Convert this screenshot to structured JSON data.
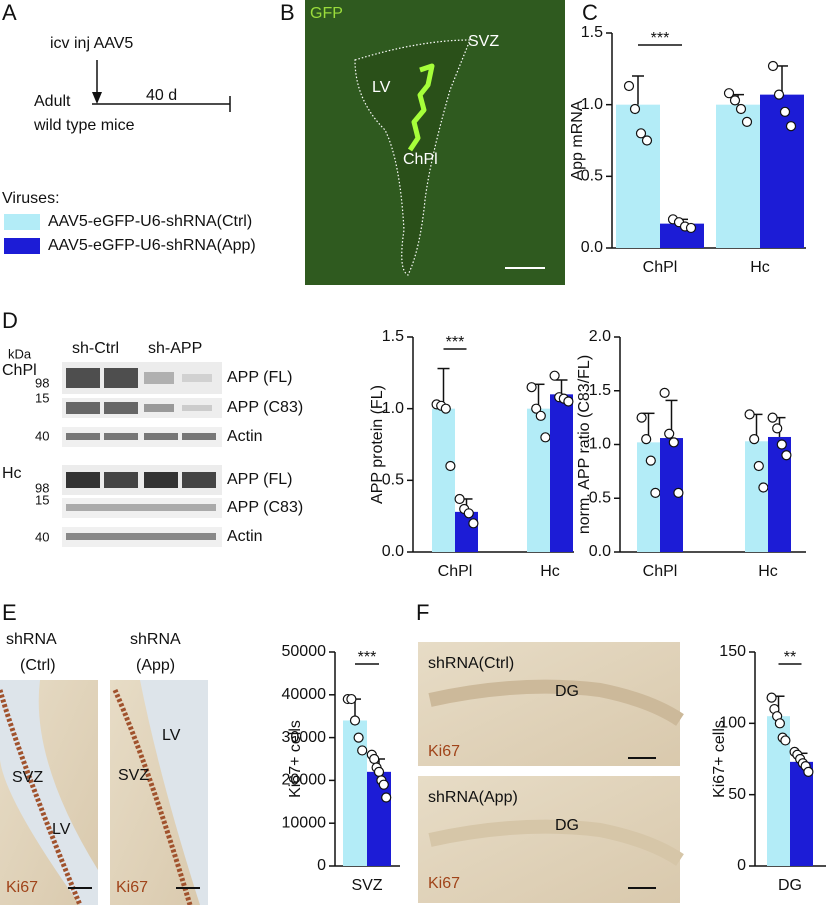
{
  "labels": [
    "A",
    "B",
    "C",
    "D",
    "E",
    "F"
  ],
  "schematic": {
    "injection": "icv inj AAV5",
    "duration": "40 d",
    "subject_1": "Adult",
    "subject_2": "wild type mice"
  },
  "gfp_image": {
    "channel": "GFP",
    "regions": [
      "SVZ",
      "LV",
      "ChPl"
    ]
  },
  "western_blot": {
    "unit": "kDa",
    "lanes": [
      "sh-Ctrl",
      "sh-APP"
    ],
    "tissues": [
      "ChPl",
      "Hc"
    ],
    "markers": [
      "98",
      "15",
      "40"
    ],
    "bands": [
      "APP (FL)",
      "APP (C83)",
      "Actin"
    ]
  },
  "svz_images": [
    {
      "title": "shRNA",
      "condition": "(Ctrl)",
      "stain": "Ki67",
      "regions": [
        "SVZ",
        "LV"
      ]
    },
    {
      "title": "shRNA",
      "condition": "(App)",
      "stain": "Ki67",
      "regions": [
        "SVZ",
        "LV"
      ]
    }
  ],
  "dg_images": [
    {
      "title": "shRNA(Ctrl)",
      "region": "DG",
      "stain": "Ki67"
    },
    {
      "title": "shRNA(App)",
      "region": "DG",
      "stain": "Ki67"
    }
  ],
  "chart_data": [
    {
      "type": "bar",
      "ylabel": "App mRNA",
      "legend_title": "Viruses:",
      "categories": [
        "ChPl",
        "Hc"
      ],
      "series": [
        {
          "name": "AAV5-eGFP-U6-shRNA(Ctrl)",
          "color": "#b3ecf7",
          "values": [
            1.0,
            1.0
          ],
          "errors": [
            0.2,
            0.07
          ],
          "points": [
            [
              1.13,
              0.97,
              0.8,
              0.75
            ],
            [
              1.08,
              1.03,
              0.97,
              0.88
            ]
          ]
        },
        {
          "name": "AAV5-eGFP-U6-shRNA(App)",
          "color": "#1c1cd6",
          "values": [
            0.17,
            1.07
          ],
          "errors": [
            0.03,
            0.2
          ],
          "points": [
            [
              0.2,
              0.18,
              0.15,
              0.14
            ],
            [
              1.27,
              1.07,
              0.95,
              0.85
            ]
          ]
        }
      ],
      "ylim": [
        0,
        1.5
      ],
      "yticks": [
        {
          "value": 0,
          "label": "0.0"
        },
        0.5,
        {
          "value": 1,
          "label": "1.0"
        },
        1.5
      ],
      "annotations": [
        "***"
      ]
    },
    {
      "type": "bar",
      "ylabel": "APP protein (FL)",
      "categories": [
        "ChPl",
        "Hc"
      ],
      "series": [
        {
          "color": "#b3ecf7",
          "values": [
            1.0,
            1.0
          ],
          "errors": [
            0.28,
            0.17
          ],
          "points": [
            [
              1.03,
              1.02,
              1.0,
              0.6
            ],
            [
              1.15,
              1.0,
              0.95,
              0.8
            ]
          ]
        },
        {
          "color": "#1c1cd6",
          "values": [
            0.28,
            1.1
          ],
          "errors": [
            0.09,
            0.1
          ],
          "points": [
            [
              0.37,
              0.3,
              0.27,
              0.2
            ],
            [
              1.23,
              1.08,
              1.07,
              1.05
            ]
          ]
        }
      ],
      "ylim": [
        0,
        1.5
      ],
      "yticks": [
        {
          "value": 0,
          "label": "0.0"
        },
        0.5,
        {
          "value": 1,
          "label": "1.0"
        },
        1.5
      ],
      "annotations": [
        "***"
      ]
    },
    {
      "type": "bar",
      "ylabel": "norm. APP ratio (C83/FL)",
      "categories": [
        "ChPl",
        "Hc"
      ],
      "series": [
        {
          "color": "#b3ecf7",
          "values": [
            1.02,
            1.03
          ],
          "errors": [
            0.27,
            0.25
          ],
          "points": [
            [
              1.25,
              1.05,
              0.85,
              0.55
            ],
            [
              1.28,
              1.05,
              0.8,
              0.6
            ]
          ]
        },
        {
          "color": "#1c1cd6",
          "values": [
            1.06,
            1.07
          ],
          "errors": [
            0.35,
            0.18
          ],
          "points": [
            [
              1.48,
              1.1,
              1.02,
              0.55
            ],
            [
              1.25,
              1.15,
              1.0,
              0.9
            ]
          ]
        }
      ],
      "ylim": [
        0,
        2
      ],
      "yticks": [
        {
          "value": 0,
          "label": "0.0"
        },
        0.5,
        {
          "value": 1,
          "label": "1.0"
        },
        1.5,
        {
          "value": 2,
          "label": "2.0"
        }
      ]
    },
    {
      "type": "bar",
      "ylabel": "Ki67+ cells",
      "categories": [
        "SVZ"
      ],
      "series": [
        {
          "color": "#b3ecf7",
          "values": [
            34000
          ],
          "errors": [
            5000
          ],
          "points": [
            [
              39000,
              39000,
              34000,
              30000,
              27000
            ]
          ]
        },
        {
          "color": "#1c1cd6",
          "values": [
            22000
          ],
          "errors": [
            3000
          ],
          "points": [
            [
              26000,
              25000,
              23000,
              22000,
              20000,
              19000,
              16000
            ]
          ]
        }
      ],
      "ylim": [
        0,
        50000
      ],
      "yticks": [
        0,
        10000,
        20000,
        30000,
        40000,
        50000
      ],
      "annotations": [
        "***"
      ]
    },
    {
      "type": "bar",
      "ylabel": "Ki67+ cells",
      "categories": [
        "DG"
      ],
      "series": [
        {
          "color": "#b3ecf7",
          "values": [
            105
          ],
          "errors": [
            14
          ],
          "points": [
            [
              118,
              110,
              105,
              100,
              90,
              88
            ]
          ]
        },
        {
          "color": "#1c1cd6",
          "values": [
            73
          ],
          "errors": [
            6
          ],
          "points": [
            [
              80,
              78,
              75,
              72,
              70,
              66
            ]
          ]
        }
      ],
      "ylim": [
        0,
        150
      ],
      "yticks": [
        0,
        50,
        100,
        150
      ],
      "annotations": [
        "**"
      ]
    }
  ]
}
